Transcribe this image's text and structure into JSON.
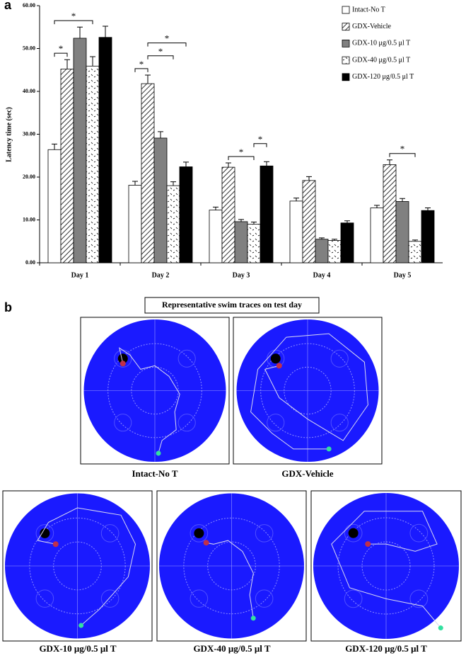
{
  "panel_labels": [
    "a",
    "b"
  ],
  "chart_data": {
    "type": "bar",
    "title": null,
    "y_label": "Latency time (sec)",
    "categories": [
      "Day 1",
      "Day 2",
      "Day 3",
      "Day 4",
      "Day 5"
    ],
    "series": [
      {
        "name": "Intact-No T",
        "color": "#ffffff",
        "pattern": "solid",
        "values": [
          26.4,
          18.1,
          12.3,
          14.4,
          12.8
        ],
        "errors": [
          1.3,
          0.9,
          0.7,
          0.7,
          0.6
        ]
      },
      {
        "name": "GDX-Vehicle",
        "color": "#ffffff",
        "pattern": "hatch",
        "values": [
          45.2,
          41.8,
          22.3,
          19.2,
          22.9
        ],
        "errors": [
          2.2,
          2.0,
          1.0,
          0.9,
          1.1
        ]
      },
      {
        "name": "GDX-10 μg/0.5 μl T",
        "color": "#808080",
        "pattern": "solid",
        "values": [
          52.4,
          29.1,
          9.6,
          5.5,
          14.3
        ],
        "errors": [
          2.6,
          1.5,
          0.5,
          0.3,
          0.7
        ]
      },
      {
        "name": "GDX-40 μg/0.5 μl T",
        "color": "#ffffff",
        "pattern": "dots",
        "values": [
          45.9,
          18.0,
          9.0,
          5.2,
          5.0
        ],
        "errors": [
          2.2,
          0.9,
          0.5,
          0.3,
          0.3
        ]
      },
      {
        "name": "GDX-120 μg/0.5 μl T",
        "color": "#000000",
        "pattern": "solid",
        "values": [
          52.6,
          22.4,
          22.6,
          9.3,
          12.2
        ],
        "errors": [
          2.6,
          1.1,
          1.0,
          0.5,
          0.6
        ]
      }
    ],
    "ylim": [
      0,
      60
    ],
    "yticks": [
      {
        "value": 0,
        "label": "0.00"
      },
      {
        "value": 10,
        "label": "10.00"
      },
      {
        "value": 20,
        "label": "20.00"
      },
      {
        "value": 30,
        "label": "30.00"
      },
      {
        "value": 40,
        "label": "40.00"
      },
      {
        "value": 50,
        "label": "50.00"
      },
      {
        "value": 60,
        "label": "60.00"
      }
    ],
    "legend": "upper right",
    "significance": [
      {
        "text": "*",
        "category": "Day 1",
        "series": [
          "Intact-No T",
          "GDX-Vehicle"
        ]
      },
      {
        "text": "*",
        "category": "Day 1",
        "series": [
          "Intact-No T",
          "GDX-40 μg/0.5 μl T"
        ]
      },
      {
        "text": "*",
        "category": "Day 2",
        "series": [
          "Intact-No T",
          "GDX-Vehicle"
        ]
      },
      {
        "text": "*",
        "category": "Day 2",
        "series": [
          "GDX-Vehicle",
          "GDX-40 μg/0.5 μl T"
        ]
      },
      {
        "text": "*",
        "category": "Day 2",
        "series": [
          "GDX-Vehicle",
          "GDX-120 μg/0.5 μl T"
        ]
      },
      {
        "text": "*",
        "category": "Day 3",
        "series": [
          "GDX-Vehicle",
          "GDX-40 μg/0.5 μl T"
        ]
      },
      {
        "text": "*",
        "category": "Day 3",
        "series": [
          "GDX-40 μg/0.5 μl T",
          "GDX-120 μg/0.5 μl T"
        ]
      },
      {
        "text": "*",
        "category": "Day 5",
        "series": [
          "GDX-Vehicle",
          "GDX-40 μg/0.5 μl T"
        ]
      }
    ]
  },
  "swim_traces": {
    "title": "Representative swim traces on test day",
    "panels": [
      "Intact-No T",
      "GDX-Vehicle",
      "GDX-10 μg/0.5 μl T",
      "GDX-40 μg/0.5 μl T",
      "GDX-120 μg/0.5 μl T"
    ]
  }
}
